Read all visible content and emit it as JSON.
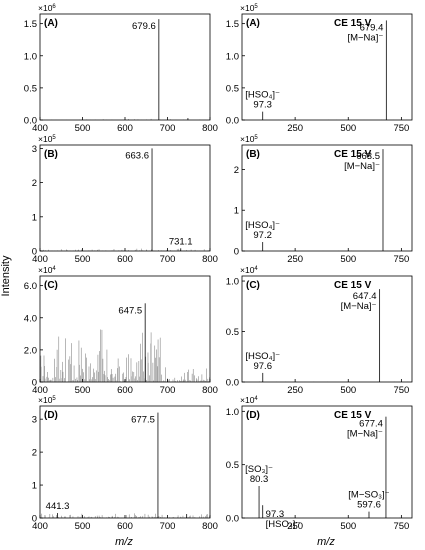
{
  "figure": {
    "ylabel": "Intensity",
    "xlabel": "m/z"
  },
  "chart_data": [
    {
      "id": "A-left",
      "type": "line",
      "panel_label": "(A)",
      "ce_label": "",
      "multiplier_base": "×10",
      "multiplier_exp": "6",
      "xlim": [
        400,
        800
      ],
      "ylim": [
        0,
        1.65
      ],
      "xticks": [
        400,
        500,
        600,
        700,
        800
      ],
      "xtick_labels": [
        "400",
        "500",
        "600",
        "700",
        "800"
      ],
      "yticks": [
        0,
        0.5,
        1.0,
        1.5
      ],
      "ytick_labels": [
        "0.0",
        "0.5",
        "1.0",
        "1.5"
      ],
      "peaks": [
        {
          "x": 679.6,
          "y": 1.57
        },
        {
          "x": 748,
          "y": 0.03
        }
      ],
      "noise_level": 0.01,
      "noise_density": 0.2,
      "annotations": [
        {
          "lines": [
            "679.6"
          ],
          "at_x": 679.6,
          "side": "left"
        }
      ]
    },
    {
      "id": "A-right",
      "type": "line",
      "panel_label": "(A)",
      "ce_label": "CE 15 V",
      "multiplier_base": "×10",
      "multiplier_exp": "5",
      "xlim": [
        0,
        800
      ],
      "ylim": [
        0,
        1.65
      ],
      "xticks": [
        250,
        500,
        750
      ],
      "xtick_labels": [
        "250",
        "500",
        "750"
      ],
      "yticks": [
        0,
        0.5,
        1.0,
        1.5
      ],
      "ytick_labels": [
        "0.0",
        "0.5",
        "1.0",
        "1.5"
      ],
      "peaks": [
        {
          "x": 97.3,
          "y": 0.13
        },
        {
          "x": 679.4,
          "y": 1.55
        }
      ],
      "noise_level": 0.005,
      "noise_density": 0.1,
      "annotations": [
        {
          "lines": [
            "679.4",
            "[M−Na]⁻"
          ],
          "at_x": 679.4,
          "side": "left"
        },
        {
          "lines": [
            "[HSO₄]⁻",
            "97.3"
          ],
          "at_x": 97.3,
          "side": "center"
        }
      ]
    },
    {
      "id": "B-left",
      "type": "line",
      "panel_label": "(B)",
      "ce_label": "",
      "multiplier_base": "×10",
      "multiplier_exp": "5",
      "xlim": [
        400,
        800
      ],
      "ylim": [
        0,
        3.1
      ],
      "xticks": [
        400,
        500,
        600,
        700,
        800
      ],
      "xtick_labels": [
        "400",
        "500",
        "600",
        "700",
        "800"
      ],
      "yticks": [
        0,
        1,
        2,
        3
      ],
      "ytick_labels": [
        "0",
        "1",
        "2",
        "3"
      ],
      "peaks": [
        {
          "x": 663.6,
          "y": 3.0
        },
        {
          "x": 731.1,
          "y": 0.08
        }
      ],
      "noise_level": 0.04,
      "noise_density": 0.6,
      "annotations": [
        {
          "lines": [
            "663.6"
          ],
          "at_x": 663.6,
          "side": "left"
        },
        {
          "lines": [
            "731.1"
          ],
          "at_x": 731.1,
          "side": "center"
        }
      ]
    },
    {
      "id": "B-right",
      "type": "line",
      "panel_label": "(B)",
      "ce_label": "CE 15 V",
      "multiplier_base": "×10",
      "multiplier_exp": "5",
      "xlim": [
        0,
        800
      ],
      "ylim": [
        0,
        2.6
      ],
      "xticks": [
        250,
        500,
        750
      ],
      "xtick_labels": [
        "250",
        "500",
        "750"
      ],
      "yticks": [
        0,
        1,
        2
      ],
      "ytick_labels": [
        "0",
        "1",
        "2"
      ],
      "peaks": [
        {
          "x": 97.2,
          "y": 0.22
        },
        {
          "x": 663.5,
          "y": 2.5
        }
      ],
      "noise_level": 0.005,
      "noise_density": 0.1,
      "annotations": [
        {
          "lines": [
            "663.5",
            "[M−Na]⁻"
          ],
          "at_x": 663.5,
          "side": "left"
        },
        {
          "lines": [
            "[HSO₄]⁻",
            "97.2"
          ],
          "at_x": 97.2,
          "side": "center"
        }
      ]
    },
    {
      "id": "C-left",
      "type": "line",
      "panel_label": "(C)",
      "ce_label": "",
      "multiplier_base": "×10",
      "multiplier_exp": "4",
      "xlim": [
        400,
        800
      ],
      "ylim": [
        0,
        6.6
      ],
      "xticks": [
        400,
        500,
        600,
        700,
        800
      ],
      "xtick_labels": [
        "400",
        "500",
        "600",
        "700",
        "800"
      ],
      "yticks": [
        0,
        2,
        4,
        6
      ],
      "ytick_labels": [
        "0",
        "2.0",
        "4.0",
        "6.0"
      ],
      "peaks": [
        {
          "x": 647.5,
          "y": 4.9
        }
      ],
      "noise_level": 2.0,
      "noise_density": 1.0,
      "annotations": [
        {
          "lines": [
            "647.5"
          ],
          "at_x": 647.5,
          "side": "left"
        }
      ]
    },
    {
      "id": "C-right",
      "type": "line",
      "panel_label": "(C)",
      "ce_label": "CE 15 V",
      "multiplier_base": "×10",
      "multiplier_exp": "4",
      "xlim": [
        0,
        800
      ],
      "ylim": [
        0,
        1.05
      ],
      "xticks": [
        250,
        500,
        750
      ],
      "xtick_labels": [
        "250",
        "500",
        "750"
      ],
      "yticks": [
        0,
        0.5,
        1.0
      ],
      "ytick_labels": [
        "0.0",
        "0.5",
        "1.0"
      ],
      "peaks": [
        {
          "x": 97.6,
          "y": 0.09
        },
        {
          "x": 647.4,
          "y": 0.92
        }
      ],
      "noise_level": 0.005,
      "noise_density": 0.1,
      "annotations": [
        {
          "lines": [
            "647.4",
            "[M−Na]⁻"
          ],
          "at_x": 647.4,
          "side": "left"
        },
        {
          "lines": [
            "[HSO₄]⁻",
            "97.6"
          ],
          "at_x": 97.6,
          "side": "center"
        }
      ]
    },
    {
      "id": "D-left",
      "type": "line",
      "panel_label": "(D)",
      "ce_label": "",
      "multiplier_base": "×10",
      "multiplier_exp": "5",
      "xlim": [
        400,
        800
      ],
      "ylim": [
        0,
        3.4
      ],
      "xticks": [
        400,
        500,
        600,
        700,
        800
      ],
      "xtick_labels": [
        "400",
        "500",
        "600",
        "700",
        "800"
      ],
      "yticks": [
        0,
        1,
        2,
        3
      ],
      "ytick_labels": [
        "0",
        "1",
        "2",
        "3"
      ],
      "peaks": [
        {
          "x": 677.5,
          "y": 3.2
        },
        {
          "x": 441.3,
          "y": 0.15
        },
        {
          "x": 745,
          "y": 0.12
        }
      ],
      "noise_level": 0.08,
      "noise_density": 0.8,
      "annotations": [
        {
          "lines": [
            "677.5"
          ],
          "at_x": 677.5,
          "side": "left"
        },
        {
          "lines": [
            "441.3"
          ],
          "at_x": 441.3,
          "side": "center"
        }
      ]
    },
    {
      "id": "D-right",
      "type": "line",
      "panel_label": "(D)",
      "ce_label": "CE 15 V",
      "multiplier_base": "×10",
      "multiplier_exp": "4",
      "xlim": [
        0,
        800
      ],
      "ylim": [
        0,
        1.05
      ],
      "xticks": [
        250,
        500,
        750
      ],
      "xtick_labels": [
        "250",
        "500",
        "750"
      ],
      "yticks": [
        0,
        0.5,
        1.0
      ],
      "ytick_labels": [
        "0.0",
        "0.5",
        "1.0"
      ],
      "peaks": [
        {
          "x": 80.3,
          "y": 0.3
        },
        {
          "x": 97.3,
          "y": 0.12
        },
        {
          "x": 597.6,
          "y": 0.06
        },
        {
          "x": 677.4,
          "y": 0.95
        }
      ],
      "noise_level": 0.005,
      "noise_density": 0.1,
      "annotations": [
        {
          "lines": [
            "677.4",
            "[M−Na]⁻"
          ],
          "at_x": 677.4,
          "side": "left"
        },
        {
          "lines": [
            "[SO₃]⁻",
            "80.3"
          ],
          "at_x": 80.3,
          "side": "center"
        },
        {
          "lines": [
            "97.3",
            "[HSO₄]⁻"
          ],
          "at_x": 97.3,
          "side": "right"
        },
        {
          "lines": [
            "[M−SO₃]⁻",
            "597.6"
          ],
          "at_x": 597.6,
          "side": "center"
        }
      ]
    }
  ]
}
